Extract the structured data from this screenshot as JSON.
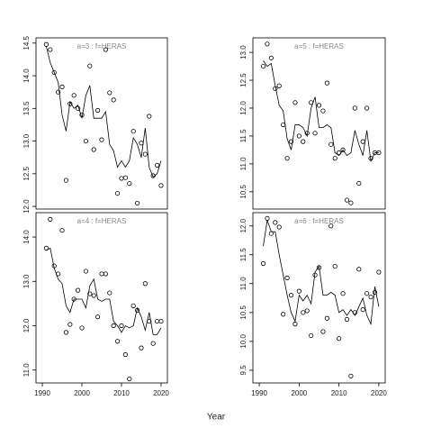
{
  "xlabel": "Year",
  "chart_data": [
    {
      "type": "scatter",
      "title": "a=3  :  f=HERAS",
      "x": [
        1991,
        1992,
        1993,
        1994,
        1995,
        1996,
        1997,
        1998,
        1999,
        2000,
        2001,
        2002,
        2003,
        2004,
        2005,
        2006,
        2007,
        2008,
        2009,
        2010,
        2011,
        2012,
        2013,
        2014,
        2015,
        2016,
        2017,
        2018,
        2019,
        2020
      ],
      "xlim": [
        1988.4,
        2021.6
      ],
      "ylim": [
        11.96,
        14.58
      ],
      "yticks": [
        {
          "value": 12,
          "label": "12.0"
        },
        12.5,
        {
          "value": 13,
          "label": "13.0"
        },
        13.5,
        {
          "value": 14,
          "label": "14.0"
        },
        14.5
      ],
      "series": [
        {
          "style": "points",
          "color": "#000000",
          "values": [
            14.48,
            14.4,
            14.05,
            13.75,
            13.83,
            12.4,
            13.57,
            13.7,
            13.5,
            13.4,
            13.0,
            14.15,
            12.87,
            13.47,
            13.02,
            14.4,
            13.74,
            13.63,
            12.2,
            12.43,
            12.44,
            12.35,
            13.15,
            12.05,
            12.97,
            12.8,
            13.38,
            12.47,
            12.63,
            12.32
          ]
        },
        {
          "style": "line",
          "color": "#000000",
          "values": [
            14.45,
            14.2,
            14.05,
            13.9,
            13.4,
            13.15,
            13.6,
            13.5,
            13.55,
            13.35,
            13.7,
            13.85,
            13.35,
            13.35,
            13.35,
            13.45,
            12.95,
            12.85,
            12.6,
            12.7,
            12.6,
            12.7,
            13.05,
            12.95,
            12.75,
            13.2,
            12.6,
            12.45,
            12.5,
            12.7
          ]
        }
      ]
    },
    {
      "type": "scatter",
      "title": "a=5  :  f=HERAS",
      "x": [
        1991,
        1992,
        1993,
        1994,
        1995,
        1996,
        1997,
        1998,
        1999,
        2000,
        2001,
        2002,
        2003,
        2004,
        2005,
        2006,
        2007,
        2008,
        2009,
        2010,
        2011,
        2012,
        2013,
        2014,
        2015,
        2016,
        2017,
        2018,
        2019,
        2020
      ],
      "xlim": [
        1988.4,
        2021.6
      ],
      "ylim": [
        10.19,
        13.26
      ],
      "yticks": [
        10.5,
        {
          "value": 11,
          "label": "11.0"
        },
        11.5,
        {
          "value": 12,
          "label": "12.0"
        },
        12.5,
        {
          "value": 13,
          "label": "13.0"
        }
      ],
      "series": [
        {
          "style": "points",
          "color": "#000000",
          "values": [
            12.75,
            13.15,
            12.9,
            12.35,
            12.4,
            11.7,
            11.1,
            11.4,
            12.1,
            11.5,
            11.4,
            11.55,
            12.1,
            11.55,
            12.05,
            11.95,
            12.45,
            11.35,
            11.1,
            11.2,
            11.25,
            10.35,
            10.3,
            12.0,
            10.65,
            11.4,
            12.0,
            11.1,
            11.2,
            11.2
          ]
        },
        {
          "style": "line",
          "color": "#000000",
          "values": [
            12.85,
            12.75,
            12.8,
            12.4,
            12.05,
            11.95,
            11.45,
            11.25,
            11.7,
            11.7,
            11.65,
            11.5,
            12.0,
            12.2,
            11.65,
            11.65,
            11.7,
            11.65,
            11.2,
            11.15,
            11.25,
            11.15,
            11.2,
            11.6,
            11.35,
            11.15,
            11.6,
            11.05,
            11.2,
            11.2
          ]
        }
      ]
    },
    {
      "type": "scatter",
      "title": "a=4  :  f=HERAS",
      "x": [
        1991,
        1992,
        1993,
        1994,
        1995,
        1996,
        1997,
        1998,
        1999,
        2000,
        2001,
        2002,
        2003,
        2004,
        2005,
        2006,
        2007,
        2008,
        2009,
        2010,
        2011,
        2012,
        2013,
        2014,
        2015,
        2016,
        2017,
        2018,
        2019,
        2020
      ],
      "xlim": [
        1988.4,
        2021.6
      ],
      "ylim": [
        10.71,
        14.55
      ],
      "xticks": [
        1990,
        2000,
        2010,
        2020
      ],
      "yticks": [
        {
          "value": 11,
          "label": "11.0"
        },
        {
          "value": 12,
          "label": "12.0"
        },
        {
          "value": 13,
          "label": "13.0"
        },
        {
          "value": 14,
          "label": "14.0"
        }
      ],
      "series": [
        {
          "style": "points",
          "color": "#000000",
          "values": [
            13.75,
            14.4,
            13.35,
            13.17,
            14.15,
            11.85,
            12.03,
            12.6,
            12.8,
            11.95,
            13.23,
            12.72,
            12.68,
            12.2,
            13.17,
            13.17,
            12.74,
            12.0,
            11.65,
            12.0,
            11.35,
            10.8,
            12.45,
            12.35,
            11.5,
            12.95,
            12.1,
            11.6,
            12.1,
            12.1
          ]
        },
        {
          "style": "line",
          "color": "#000000",
          "values": [
            13.7,
            13.75,
            13.3,
            13.05,
            12.95,
            12.45,
            12.3,
            12.6,
            12.6,
            12.6,
            12.4,
            12.9,
            13.05,
            12.6,
            12.55,
            12.6,
            12.6,
            12.1,
            12.0,
            11.85,
            12.0,
            11.95,
            12.0,
            12.4,
            12.2,
            11.9,
            12.3,
            11.8,
            11.8,
            11.95
          ]
        }
      ]
    },
    {
      "type": "scatter",
      "title": "a=6  :  f=HERAS",
      "x": [
        1991,
        1992,
        1993,
        1994,
        1995,
        1996,
        1997,
        1998,
        1999,
        2000,
        2001,
        2002,
        2003,
        2004,
        2005,
        2006,
        2007,
        2008,
        2009,
        2010,
        2011,
        2012,
        2013,
        2014,
        2015,
        2016,
        2017,
        2018,
        2019,
        2020
      ],
      "xlim": [
        1988.4,
        2021.6
      ],
      "ylim": [
        9.28,
        12.23
      ],
      "xticks": [
        1990,
        2000,
        2010,
        2020
      ],
      "yticks": [
        9.5,
        {
          "value": 10,
          "label": "10.0"
        },
        10.5,
        {
          "value": 11,
          "label": "11.0"
        },
        11.5,
        {
          "value": 12,
          "label": "12.0"
        }
      ],
      "series": [
        {
          "style": "points",
          "color": "#000000",
          "values": [
            11.35,
            12.13,
            11.87,
            12.06,
            11.98,
            10.47,
            11.1,
            10.8,
            10.3,
            10.87,
            10.5,
            10.53,
            10.1,
            11.15,
            11.28,
            10.17,
            10.4,
            12.0,
            11.3,
            10.05,
            10.83,
            10.38,
            9.4,
            10.5,
            11.25,
            10.55,
            10.83,
            10.77,
            10.85,
            11.2
          ]
        },
        {
          "style": "line",
          "color": "#000000",
          "values": [
            11.65,
            12.1,
            11.9,
            11.9,
            11.5,
            11.15,
            10.8,
            10.5,
            10.35,
            10.8,
            10.7,
            10.8,
            10.65,
            11.2,
            11.3,
            10.8,
            10.8,
            10.85,
            10.8,
            10.5,
            10.55,
            10.45,
            10.55,
            10.45,
            10.6,
            10.75,
            10.45,
            10.3,
            10.95,
            10.6
          ]
        }
      ]
    }
  ]
}
